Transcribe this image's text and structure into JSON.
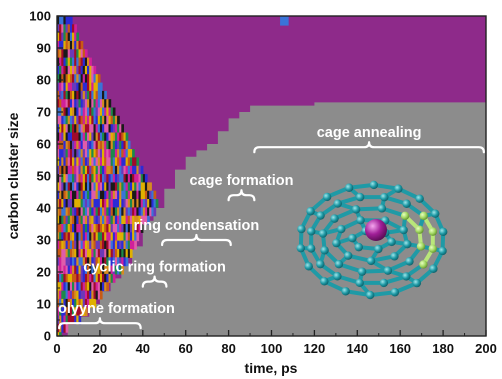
{
  "chart_data": {
    "type": "area",
    "xlabel": "time, ps",
    "ylabel": "carbon cluster size",
    "xlim": [
      0,
      200
    ],
    "ylim": [
      0,
      100
    ],
    "x_ticks": [
      0,
      20,
      40,
      60,
      80,
      100,
      120,
      140,
      160,
      180,
      200
    ],
    "y_ticks": [
      0,
      10,
      20,
      30,
      40,
      50,
      60,
      70,
      80,
      90,
      100
    ],
    "background_color": "#8c8c8c",
    "largest_cluster_color": "#8e2a8a",
    "largest_cluster_boundary": {
      "x": [
        0,
        5,
        10,
        15,
        20,
        25,
        30,
        35,
        40,
        45,
        50,
        55,
        60,
        65,
        70,
        75,
        80,
        85,
        90,
        95,
        100,
        120,
        140,
        160,
        180,
        200
      ],
      "y": [
        0,
        4,
        6,
        10,
        14,
        18,
        22,
        28,
        36,
        40,
        46,
        52,
        56,
        58,
        60,
        64,
        68,
        70,
        72,
        72,
        72,
        73,
        73,
        73,
        73,
        73
      ]
    },
    "phases": [
      {
        "label": "polyyne formation",
        "x_start": 1,
        "x_end": 39,
        "y": 4
      },
      {
        "label": "cyclic ring formation",
        "x_start": 40,
        "x_end": 51,
        "y": 17
      },
      {
        "label": "ring condensation",
        "x_start": 49,
        "x_end": 81,
        "y": 30
      },
      {
        "label": "cage formation",
        "x_start": 80,
        "x_end": 92,
        "y": 44
      },
      {
        "label": "cage annealing",
        "x_start": 92,
        "x_end": 199,
        "y": 59
      }
    ],
    "grid": false,
    "legend": "none"
  }
}
